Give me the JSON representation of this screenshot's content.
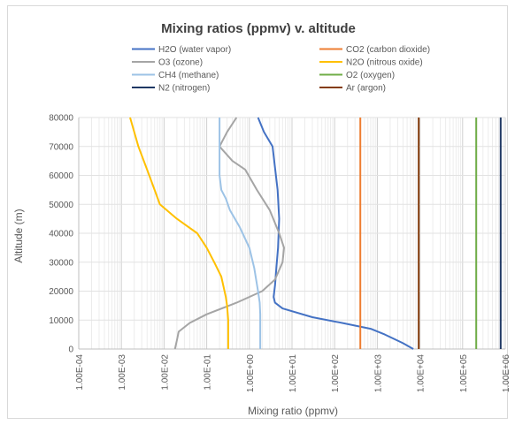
{
  "chart_data": {
    "type": "line",
    "title": "Mixing ratios (ppmv) v. altitude",
    "xlabel": "Mixing ratio (ppmv)",
    "ylabel": "Altitude (m)",
    "xscale": "log",
    "xlim": [
      0.0001,
      1000000
    ],
    "ylim": [
      0,
      80000
    ],
    "x_ticks": [
      "1.00E-04",
      "1.00E-03",
      "1.00E-02",
      "1.00E-01",
      "1.00E+00",
      "1.00E+01",
      "1.00E+02",
      "1.00E+03",
      "1.00E+04",
      "1.00E+05",
      "1.00E+06"
    ],
    "y_ticks": [
      "0",
      "10000",
      "20000",
      "30000",
      "40000",
      "50000",
      "60000",
      "70000",
      "80000"
    ],
    "grid": "log minor vertical gridlines",
    "legend": "top, two columns",
    "series": [
      {
        "name": "H2O (water vapor)",
        "color": "#4472c4",
        "points": [
          [
            7000,
            0
          ],
          [
            4000,
            2000
          ],
          [
            1500,
            5000
          ],
          [
            700,
            7000
          ],
          [
            150,
            9000
          ],
          [
            30,
            11000
          ],
          [
            6,
            14000
          ],
          [
            4,
            16000
          ],
          [
            3.7,
            18000
          ],
          [
            4,
            22000
          ],
          [
            4.3,
            28000
          ],
          [
            4.7,
            35000
          ],
          [
            5,
            45000
          ],
          [
            4.6,
            55000
          ],
          [
            4.2,
            60000
          ],
          [
            3.5,
            70000
          ],
          [
            2.2,
            75000
          ],
          [
            1.6,
            80000
          ]
        ]
      },
      {
        "name": "CO2 (carbon dioxide)",
        "color": "#ed7d31",
        "points": [
          [
            400,
            0
          ],
          [
            400,
            80000
          ]
        ]
      },
      {
        "name": "O3 (ozone)",
        "color": "#a5a5a5",
        "points": [
          [
            0.018,
            0
          ],
          [
            0.02,
            3000
          ],
          [
            0.022,
            6000
          ],
          [
            0.04,
            9000
          ],
          [
            0.1,
            12000
          ],
          [
            0.5,
            16000
          ],
          [
            2,
            20000
          ],
          [
            4,
            24000
          ],
          [
            6,
            30000
          ],
          [
            6.5,
            35000
          ],
          [
            5,
            40000
          ],
          [
            3,
            48000
          ],
          [
            1.5,
            55000
          ],
          [
            0.8,
            62000
          ],
          [
            0.4,
            65000
          ],
          [
            0.2,
            70000
          ],
          [
            0.3,
            75000
          ],
          [
            0.5,
            80000
          ]
        ]
      },
      {
        "name": "N2O (nitrous oxide)",
        "color": "#ffc000",
        "points": [
          [
            0.32,
            0
          ],
          [
            0.32,
            5000
          ],
          [
            0.32,
            10000
          ],
          [
            0.3,
            15000
          ],
          [
            0.28,
            18000
          ],
          [
            0.22,
            25000
          ],
          [
            0.15,
            30000
          ],
          [
            0.1,
            35000
          ],
          [
            0.06,
            40000
          ],
          [
            0.02,
            45000
          ],
          [
            0.008,
            50000
          ],
          [
            0.006,
            55000
          ],
          [
            0.004,
            62000
          ],
          [
            0.0025,
            70000
          ],
          [
            0.0016,
            80000
          ]
        ]
      },
      {
        "name": "CH4 (methane)",
        "color": "#9dc3e6",
        "points": [
          [
            1.8,
            0
          ],
          [
            1.8,
            5000
          ],
          [
            1.8,
            12000
          ],
          [
            1.75,
            16000
          ],
          [
            1.6,
            20000
          ],
          [
            1.3,
            28000
          ],
          [
            1,
            35000
          ],
          [
            0.6,
            42000
          ],
          [
            0.35,
            48000
          ],
          [
            0.28,
            52000
          ],
          [
            0.22,
            55000
          ],
          [
            0.2,
            60000
          ],
          [
            0.2,
            70000
          ],
          [
            0.2,
            80000
          ]
        ]
      },
      {
        "name": "O2 (oxygen)",
        "color": "#70ad47",
        "points": [
          [
            209000,
            0
          ],
          [
            209000,
            80000
          ]
        ]
      },
      {
        "name": "N2 (nitrogen)",
        "color": "#1f3864",
        "points": [
          [
            780000,
            0
          ],
          [
            780000,
            80000
          ]
        ]
      },
      {
        "name": "Ar (argon)",
        "color": "#843c0c",
        "points": [
          [
            9340,
            0
          ],
          [
            9340,
            80000
          ]
        ]
      }
    ]
  }
}
